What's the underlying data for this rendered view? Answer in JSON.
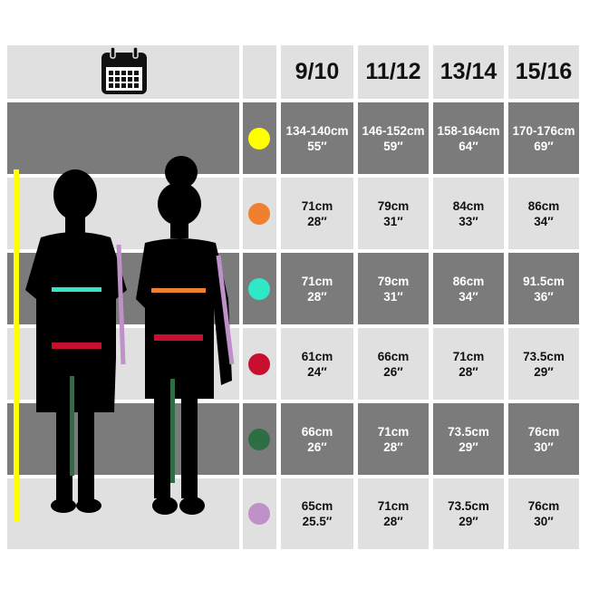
{
  "header": {
    "icon": "calendar-icon",
    "columns": [
      "9/10",
      "11/12",
      "13/14",
      "15/16"
    ]
  },
  "chart_data": {
    "type": "table",
    "columns": [
      "9/10",
      "11/12",
      "13/14",
      "15/16"
    ],
    "rows": [
      {
        "measure_color": "#ffff00",
        "cells": [
          [
            "134-140cm",
            "55″"
          ],
          [
            "146-152cm",
            "59″"
          ],
          [
            "158-164cm",
            "64″"
          ],
          [
            "170-176cm",
            "69″"
          ]
        ]
      },
      {
        "measure_color": "#f08030",
        "cells": [
          [
            "71cm",
            "28″"
          ],
          [
            "79cm",
            "31″"
          ],
          [
            "84cm",
            "33″"
          ],
          [
            "86cm",
            "34″"
          ]
        ]
      },
      {
        "measure_color": "#2ee8c8",
        "cells": [
          [
            "71cm",
            "28″"
          ],
          [
            "79cm",
            "31″"
          ],
          [
            "86cm",
            "34″"
          ],
          [
            "91.5cm",
            "36″"
          ]
        ]
      },
      {
        "measure_color": "#c8102e",
        "cells": [
          [
            "61cm",
            "24″"
          ],
          [
            "66cm",
            "26″"
          ],
          [
            "71cm",
            "28″"
          ],
          [
            "73.5cm",
            "29″"
          ]
        ]
      },
      {
        "measure_color": "#2e6e45",
        "cells": [
          [
            "66cm",
            "26″"
          ],
          [
            "71cm",
            "28″"
          ],
          [
            "73.5cm",
            "29″"
          ],
          [
            "76cm",
            "30″"
          ]
        ]
      },
      {
        "measure_color": "#c090c8",
        "cells": [
          [
            "65cm",
            "25.5″"
          ],
          [
            "71cm",
            "28″"
          ],
          [
            "73.5cm",
            "29″"
          ],
          [
            "76cm",
            "30″"
          ]
        ]
      }
    ]
  },
  "colors": {
    "dark_row": "#7b7b7b",
    "light_row": "#e0e0e0"
  }
}
